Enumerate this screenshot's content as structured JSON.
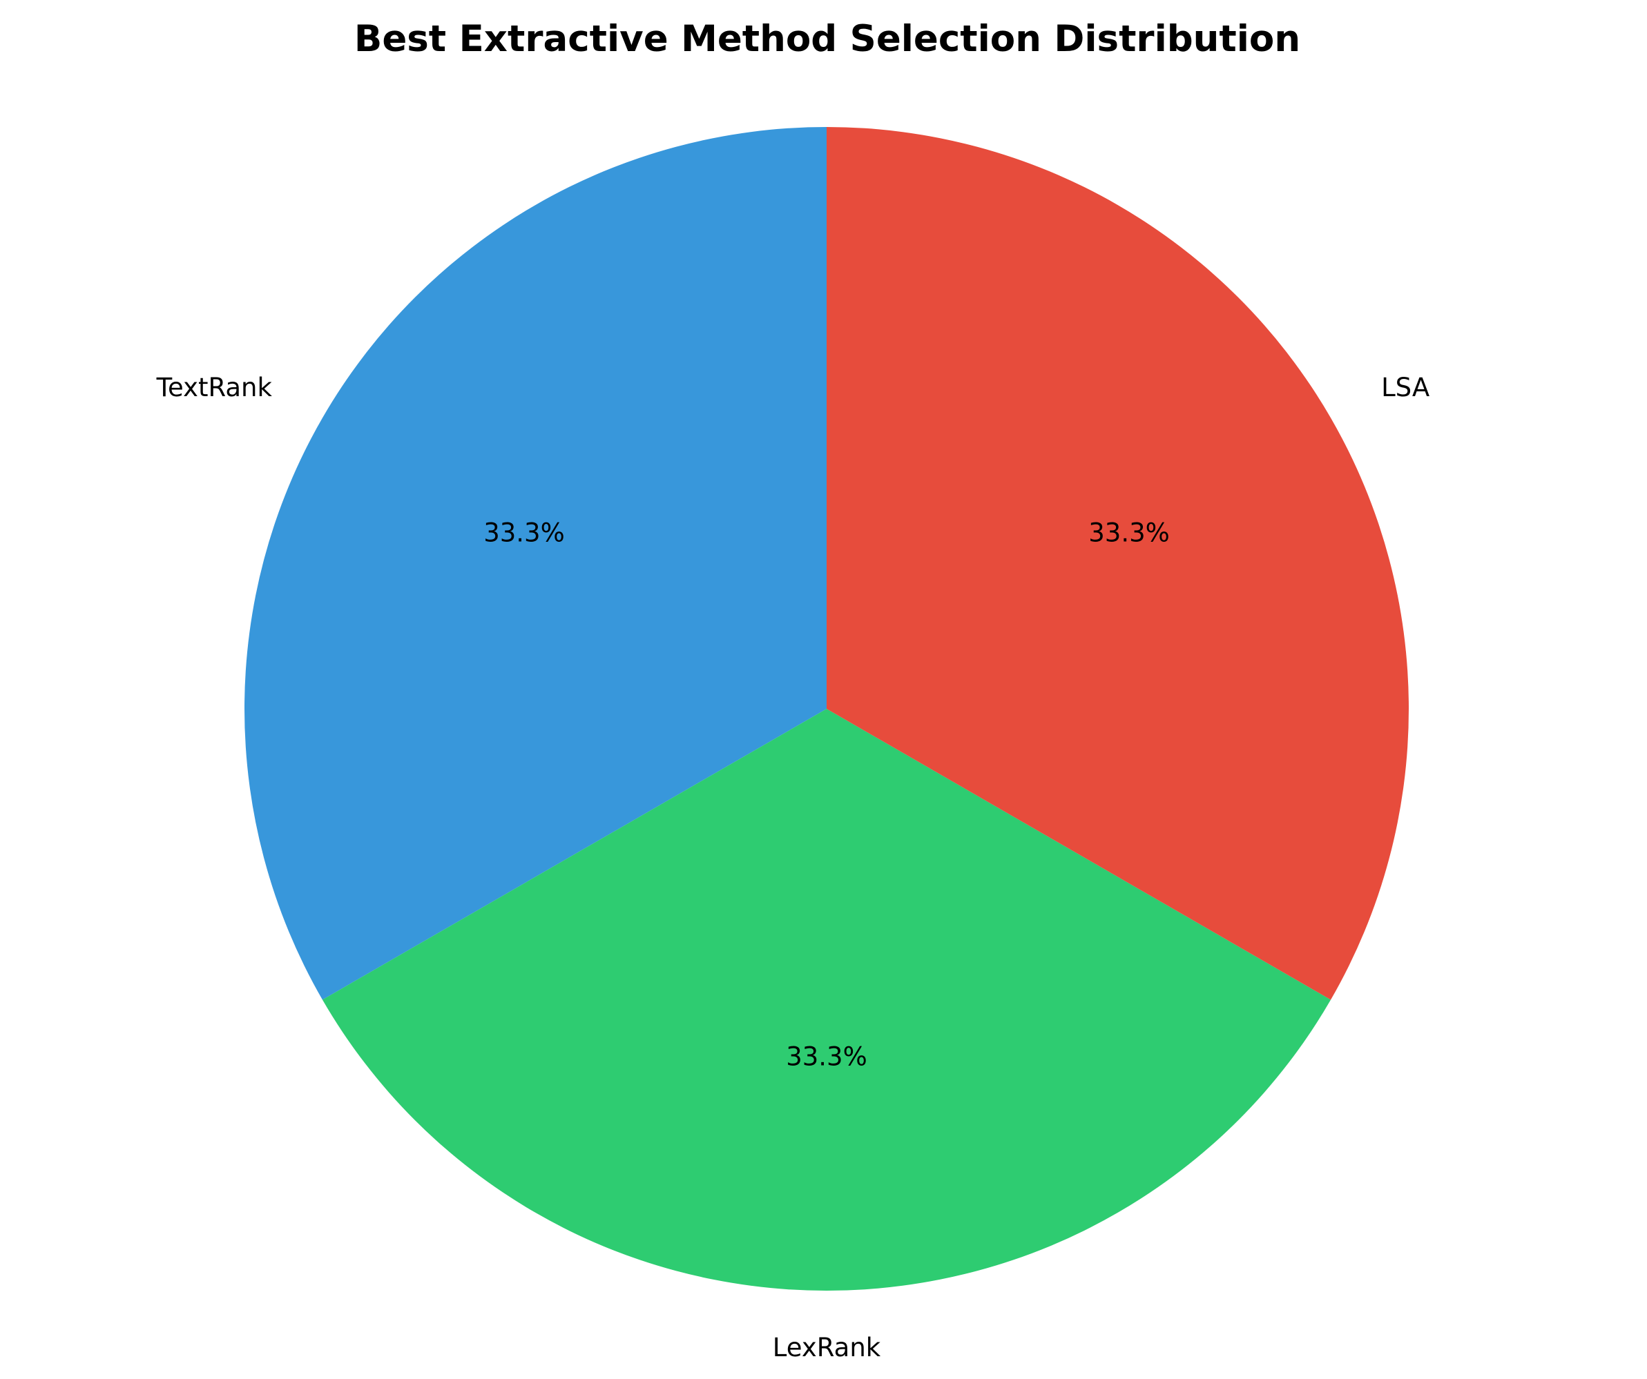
{
  "chart_data": {
    "type": "pie",
    "title": "Best Extractive Method Selection Distribution",
    "start_angle_deg": 90,
    "direction": "counterclockwise",
    "slices": [
      {
        "label": "TextRank",
        "value": 1,
        "percent_label": "33.3%",
        "color": "#3897db"
      },
      {
        "label": "LexRank",
        "value": 1,
        "percent_label": "33.3%",
        "color": "#2ecc71"
      },
      {
        "label": "LSA",
        "value": 1,
        "percent_label": "33.3%",
        "color": "#e74c3c"
      }
    ]
  }
}
